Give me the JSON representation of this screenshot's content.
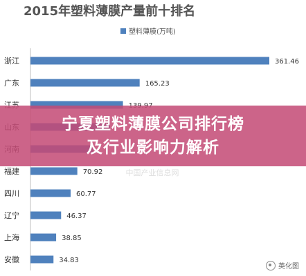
{
  "chart_data": {
    "type": "bar",
    "orientation": "horizontal",
    "title": "2015年塑料薄膜产量前十排名",
    "categories": [
      "浙江",
      "广东",
      "江苏",
      "山东",
      "河南",
      "福建",
      "四川",
      "辽宁",
      "上海",
      "安徽"
    ],
    "series": [
      {
        "name": "塑料薄膜(万吨)",
        "values": [
          361.46,
          165.23,
          139.97,
          120.5,
          95.0,
          70.92,
          60.77,
          46.37,
          38.85,
          34.83
        ],
        "value_labels": [
          "361.46",
          "165.23",
          "139.97",
          "",
          "",
          "70.92",
          "60.77",
          "46.37",
          "38.85",
          "34.83"
        ]
      }
    ],
    "xlim": [
      0,
      400
    ],
    "grid": false,
    "legend_position": "top",
    "bar_color": "#4f81bd"
  },
  "overlay": {
    "line1": "宁夏塑料薄膜公司排行榜",
    "line2": "及行业影响力解析"
  },
  "watermark": {
    "center": "中国产业信息网",
    "text": "英化图"
  }
}
